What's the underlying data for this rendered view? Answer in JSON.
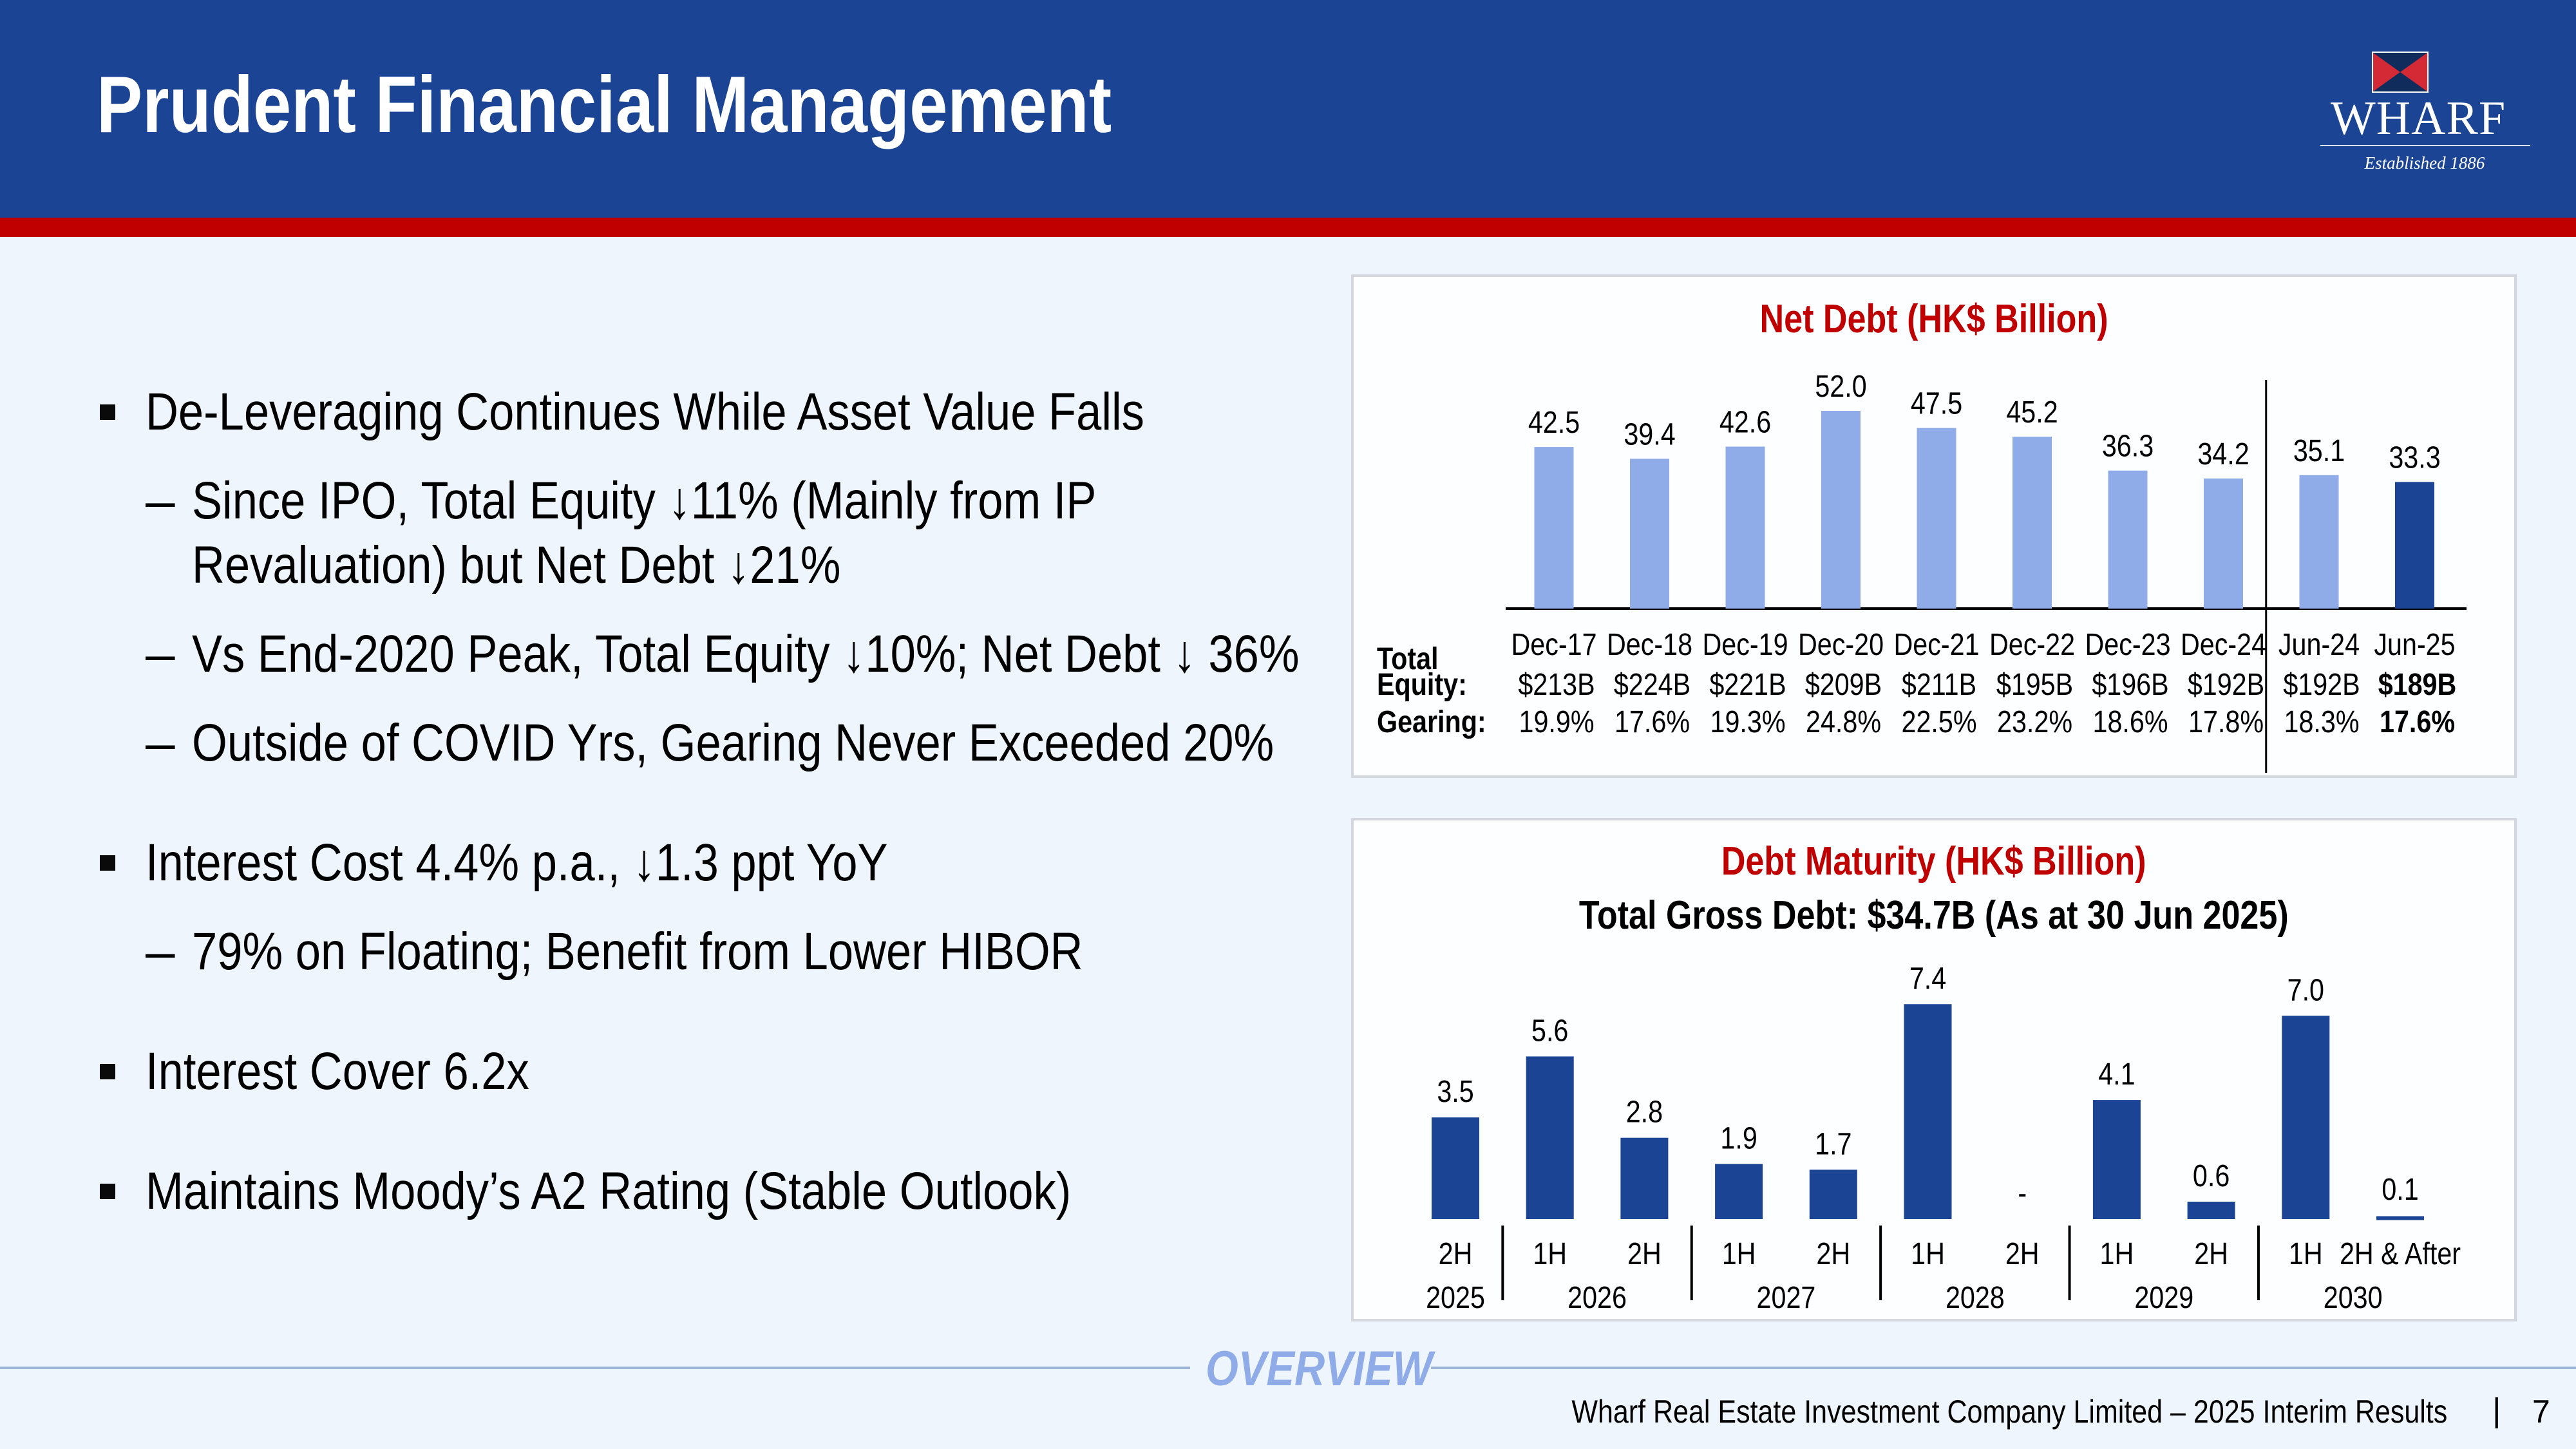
{
  "header": {
    "title": "Prudent Financial Management",
    "logo": {
      "wordmark": "WHARF",
      "tagline": "Established 1886",
      "icon": "wharf-flag-icon"
    },
    "colors": {
      "header_blue": "#1B4495",
      "stripe_red": "#C00000"
    }
  },
  "bullets": [
    {
      "level": 1,
      "text": "De-Leveraging Continues While Asset Value Falls"
    },
    {
      "level": 2,
      "text": "Since IPO, Total Equity ↓11% (Mainly from IP"
    },
    {
      "level": 2,
      "continuation": true,
      "text": "Revaluation) but Net Debt ↓21%"
    },
    {
      "level": 2,
      "text": "Vs End-2020 Peak, Total Equity ↓10%; Net Debt ↓ 36%"
    },
    {
      "level": 2,
      "text": "Outside of COVID Yrs, Gearing Never Exceeded 20%"
    },
    {
      "level": 1,
      "text": "Interest Cost 4.4% p.a., ↓1.3 ppt YoY"
    },
    {
      "level": 2,
      "text": "79% on Floating; Benefit from Lower HIBOR"
    },
    {
      "level": 1,
      "text": "Interest Cover 6.2x"
    },
    {
      "level": 1,
      "text": "Maintains Moody’s A2 Rating (Stable Outlook)"
    }
  ],
  "bullet_marker": "▪",
  "dash_marker": "–",
  "chart_data": [
    {
      "type": "bar",
      "title": "Net Debt (HK$ Billion)",
      "categories": [
        "Dec-17",
        "Dec-18",
        "Dec-19",
        "Dec-20",
        "Dec-21",
        "Dec-22",
        "Dec-23",
        "Dec-24",
        "Jun-24",
        "Jun-25"
      ],
      "values": [
        42.5,
        39.4,
        42.6,
        52.0,
        47.5,
        45.2,
        36.3,
        34.2,
        35.1,
        33.3
      ],
      "labels": [
        "42.5",
        "39.4",
        "42.6",
        "52.0",
        "47.5",
        "45.2",
        "36.3",
        "34.2",
        "35.1",
        "33.3"
      ],
      "highlight_index": 9,
      "divider_after_index": 7,
      "colors": {
        "bar": "#8FACE8",
        "highlight": "#1B4495"
      },
      "xlabel": "",
      "ylabel": "",
      "ylim": [
        0,
        55
      ],
      "grid": false,
      "table": {
        "row_label_top": "Total",
        "rows": [
          {
            "label": "Equity:",
            "values": [
              "$213B",
              "$224B",
              "$221B",
              "$209B",
              "$211B",
              "$195B",
              "$196B",
              "$192B",
              "$192B",
              "$189B"
            ]
          },
          {
            "label": "Gearing:",
            "values": [
              "19.9%",
              "17.6%",
              "19.3%",
              "24.8%",
              "22.5%",
              "23.2%",
              "18.6%",
              "17.8%",
              "18.3%",
              "17.6%"
            ]
          }
        ],
        "bold_index": 9
      }
    },
    {
      "type": "bar",
      "title": "Debt Maturity (HK$ Billion)",
      "subtitle": "Total Gross Debt: $34.7B (As at 30 Jun 2025)",
      "categories": [
        "2H",
        "1H",
        "2H",
        "1H",
        "2H",
        "1H",
        "2H",
        "1H",
        "2H",
        "1H",
        "2H & After"
      ],
      "values": [
        3.5,
        5.6,
        2.8,
        1.9,
        1.7,
        7.4,
        0,
        4.1,
        0.6,
        7.0,
        0.1
      ],
      "labels": [
        "3.5",
        "5.6",
        "2.8",
        "1.9",
        "1.7",
        "7.4",
        "-",
        "4.1",
        "0.6",
        "7.0",
        "0.1"
      ],
      "groups": [
        {
          "label": "2025",
          "span": 1
        },
        {
          "label": "2026",
          "span": 2
        },
        {
          "label": "2027",
          "span": 2
        },
        {
          "label": "2028",
          "span": 2
        },
        {
          "label": "2029",
          "span": 2
        },
        {
          "label": "2030",
          "span": 2
        }
      ],
      "colors": {
        "bar": "#1B4495"
      },
      "xlabel": "",
      "ylabel": "",
      "ylim": [
        0,
        8
      ],
      "grid": false
    }
  ],
  "footer": {
    "section": "OVERVIEW",
    "company": "Wharf Real Estate Investment Company Limited – 2025 Interim Results",
    "separator": "|",
    "page_number": "7"
  }
}
